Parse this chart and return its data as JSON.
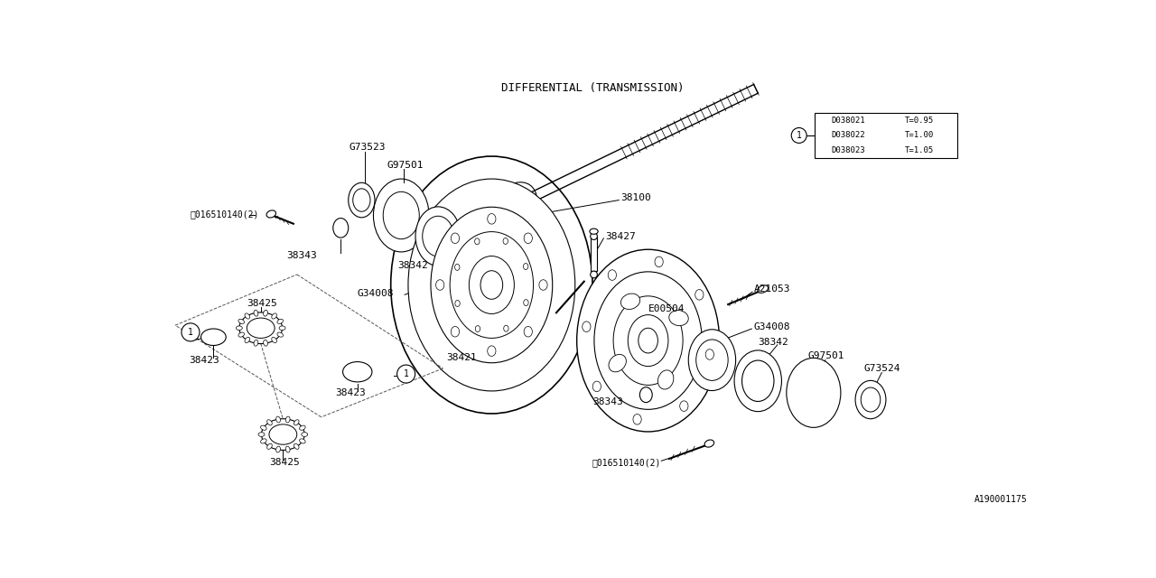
{
  "title": "DIFFERENTIAL (TRANSMISSION)",
  "background_color": "#ffffff",
  "line_color": "#000000",
  "footnote": "A190001175",
  "table_data": [
    [
      "D038021",
      "T=0.95"
    ],
    [
      "D038022",
      "T=1.00"
    ],
    [
      "D038023",
      "T=1.05"
    ]
  ]
}
